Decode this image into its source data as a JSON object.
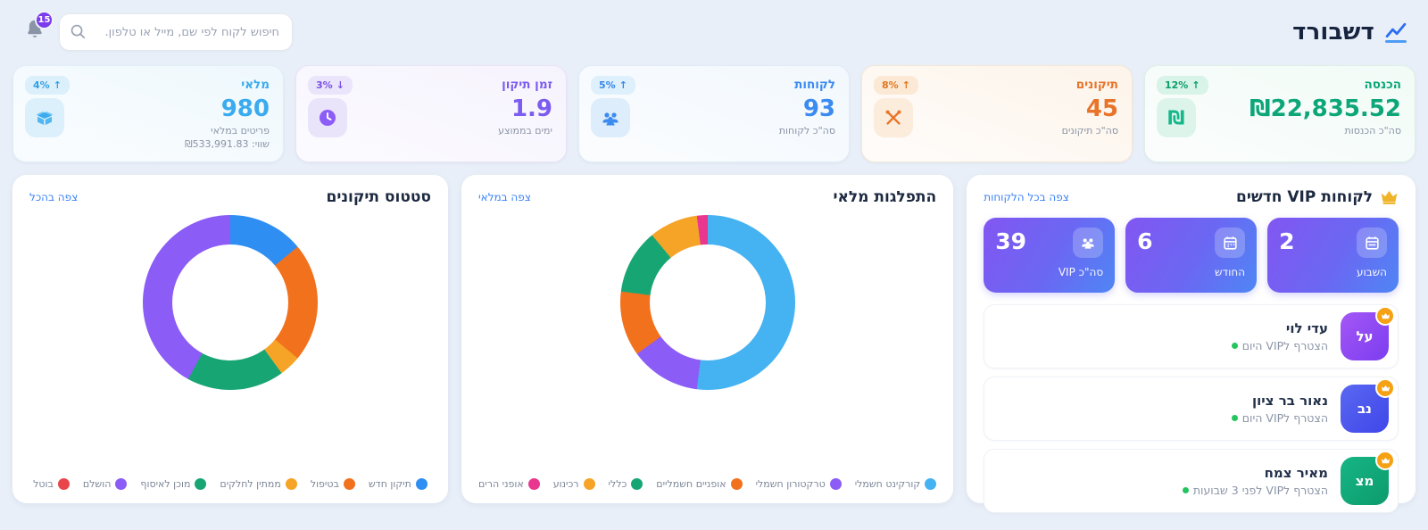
{
  "header": {
    "title": "דשבורד",
    "search_placeholder": "חיפוש לקוח לפי שם, מייל או טלפון.",
    "notifications_count": "15"
  },
  "stats": [
    {
      "title": "הכנסה",
      "value": "₪22,835.52",
      "sub": "סה\"כ הכנסות",
      "badge": "12%",
      "arrow": "↑",
      "accent": "#0ca678"
    },
    {
      "title": "תיקונים",
      "value": "45",
      "sub": "סה\"כ תיקונים",
      "badge": "8%",
      "arrow": "↑",
      "accent": "#e8742a"
    },
    {
      "title": "לקוחות",
      "value": "93",
      "sub": "סה\"כ לקוחות",
      "badge": "5%",
      "arrow": "↑",
      "accent": "#3b8bf0"
    },
    {
      "title": "זמן תיקון",
      "value": "1.9",
      "sub": "ימים בממוצע",
      "badge": "3%",
      "arrow": "↓",
      "accent": "#7c5cf0"
    },
    {
      "title": "מלאי",
      "value": "980",
      "sub": "פריטים במלאי",
      "extra": "שווי: ₪533,991.83",
      "badge": "4%",
      "arrow": "↑",
      "accent": "#3aabef"
    }
  ],
  "chart_data": [
    {
      "type": "donut",
      "title": "סטטוס תיקונים",
      "link": "צפה בהכל",
      "legend_position": "bottom",
      "segments": [
        {
          "label": "תיקון חדש",
          "value": 14,
          "color": "#2f8ef2"
        },
        {
          "label": "בטיפול",
          "value": 22,
          "color": "#f2711d"
        },
        {
          "label": "ממתין לחלקים",
          "value": 4,
          "color": "#f5a427"
        },
        {
          "label": "מוכן לאיסוף",
          "value": 18,
          "color": "#17a673"
        },
        {
          "label": "הושלם",
          "value": 42,
          "color": "#8b5cf6"
        },
        {
          "label": "בוטל",
          "value": 0,
          "color": "#e8464a"
        }
      ]
    },
    {
      "type": "donut",
      "title": "התפלגות מלאי",
      "link": "צפה במלאי",
      "legend_position": "bottom",
      "segments": [
        {
          "label": "קורקינט חשמלי",
          "value": 52,
          "color": "#45b2f1"
        },
        {
          "label": "טרקטורון חשמלי",
          "value": 13,
          "color": "#8b5cf6"
        },
        {
          "label": "אופניים חשמליים",
          "value": 12,
          "color": "#f2711d"
        },
        {
          "label": "כללי",
          "value": 12,
          "color": "#17a673"
        },
        {
          "label": "רכינוע",
          "value": 9,
          "color": "#f5a427"
        },
        {
          "label": "אופני הרים",
          "value": 2,
          "color": "#e9368f"
        }
      ]
    }
  ],
  "vip": {
    "title": "לקוחות VIP חדשים",
    "link": "צפה בכל הלקוחות",
    "tiles": [
      {
        "value": "2",
        "label": "השבוע",
        "icon": "calendar-week-icon"
      },
      {
        "value": "6",
        "label": "החודש",
        "icon": "calendar-icon"
      },
      {
        "value": "39",
        "label": "סה\"כ VIP",
        "icon": "users-icon"
      }
    ],
    "customers": [
      {
        "name": "עדי לוי",
        "initials": "על",
        "status": "הצטרף לVIP היום",
        "avatar_colors": [
          "#a457f5",
          "#7c3df0"
        ]
      },
      {
        "name": "נאור בר ציון",
        "initials": "נב",
        "status": "הצטרף לVIP היום",
        "avatar_colors": [
          "#5a68f2",
          "#3f46e8"
        ]
      },
      {
        "name": "מאיר צמח",
        "initials": "מצ",
        "status": "הצטרף לVIP לפני 3 שבועות",
        "avatar_colors": [
          "#16b585",
          "#0d9b6c"
        ]
      }
    ],
    "status_dot_color": "#22c55e",
    "crown_color": "#f0b429"
  }
}
